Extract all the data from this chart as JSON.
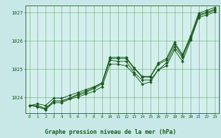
{
  "xlabel": "Graphe pression niveau de la mer (hPa)",
  "bg_color": "#c8e8e8",
  "plot_bg_color": "#d4eeee",
  "grid_color": "#2d8c2d",
  "line_color": "#1a5c1a",
  "marker_color": "#1a5c1a",
  "xlim": [
    -0.5,
    23.5
  ],
  "ylim": [
    1023.45,
    1027.25
  ],
  "yticks": [
    1024,
    1025,
    1026,
    1027
  ],
  "xticks": [
    0,
    1,
    2,
    3,
    4,
    5,
    6,
    7,
    8,
    9,
    10,
    11,
    12,
    13,
    14,
    15,
    16,
    17,
    18,
    19,
    20,
    21,
    22,
    23
  ],
  "series": [
    [
      1023.72,
      1023.72,
      1023.62,
      1023.88,
      1023.88,
      1023.98,
      1024.08,
      1024.18,
      1024.32,
      1024.48,
      1025.32,
      1025.28,
      1025.28,
      1024.88,
      1024.62,
      1024.62,
      1024.98,
      1025.22,
      1025.78,
      1025.42,
      1026.08,
      1026.88,
      1026.98,
      1027.08
    ],
    [
      1023.72,
      1023.68,
      1023.58,
      1023.82,
      1023.82,
      1023.95,
      1024.02,
      1024.12,
      1024.22,
      1024.38,
      1025.18,
      1025.18,
      1025.12,
      1024.82,
      1024.48,
      1024.55,
      1024.98,
      1025.12,
      1025.68,
      1025.28,
      1026.02,
      1026.82,
      1026.92,
      1027.02
    ],
    [
      1023.72,
      1023.78,
      1023.72,
      1023.98,
      1023.98,
      1024.08,
      1024.18,
      1024.28,
      1024.38,
      1024.52,
      1025.38,
      1025.38,
      1025.38,
      1025.02,
      1024.72,
      1024.72,
      1025.18,
      1025.32,
      1025.88,
      1025.48,
      1026.12,
      1026.92,
      1027.02,
      1027.12
    ],
    [
      1023.72,
      1023.68,
      1023.58,
      1023.88,
      1023.88,
      1023.98,
      1024.12,
      1024.22,
      1024.36,
      1024.52,
      1025.42,
      1025.42,
      1025.42,
      1025.05,
      1024.75,
      1024.75,
      1025.22,
      1025.38,
      1025.95,
      1025.52,
      1026.18,
      1026.98,
      1027.08,
      1027.18
    ]
  ]
}
